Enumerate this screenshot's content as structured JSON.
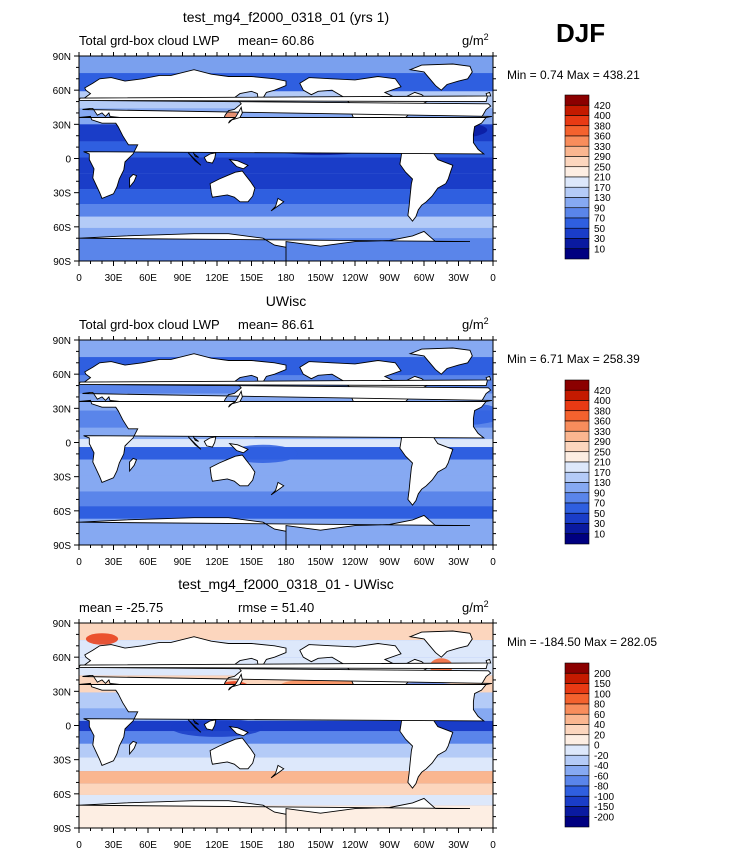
{
  "season_label": "DJF",
  "colors": {
    "ocean_base": "#6f96ec",
    "land": "#ffffff",
    "outline": "#000000"
  },
  "chart_data": [
    {
      "type": "heatmap",
      "title": "test_mg4_f2000_0318_01 (yrs 1)",
      "left_label": "Total grd-box cloud LWP",
      "stat_text": "mean=  60.86",
      "units_base": "g/m",
      "units_exp": "2",
      "minmax_text": "Min =    0.74  Max =  438.21",
      "ylim": [
        -90,
        90
      ],
      "lat_ticks": [
        "90N",
        "60N",
        "30N",
        "0",
        "30S",
        "60S",
        "90S"
      ],
      "lon_ticks": [
        "0",
        "30E",
        "60E",
        "90E",
        "120E",
        "150E",
        "180",
        "150W",
        "120W",
        "90W",
        "60W",
        "30W",
        "0"
      ],
      "colorbar": {
        "levels": [
          "420",
          "400",
          "380",
          "360",
          "330",
          "290",
          "250",
          "210",
          "170",
          "130",
          "90",
          "70",
          "50",
          "30",
          "10"
        ],
        "colors": [
          "#8b0000",
          "#c41a00",
          "#e83a14",
          "#f4622e",
          "#f88d5c",
          "#fab690",
          "#fcd6be",
          "#fdeee3",
          "#dde8fb",
          "#b4cbf7",
          "#86a9f2",
          "#5a85ea",
          "#2f5fe0",
          "#1a3dc8",
          "#0a1aa0",
          "#000080"
        ]
      },
      "bands": [
        {
          "lat": 82,
          "color": "#7aa0ee"
        },
        {
          "lat": 68,
          "color": "#2f5fe0"
        },
        {
          "lat": 50,
          "color": "#b4cbf7"
        },
        {
          "lat": 38,
          "color": "#86a9f2"
        },
        {
          "lat": 22,
          "color": "#1a3dc8"
        },
        {
          "lat": 8,
          "color": "#2f5fe0"
        },
        {
          "lat": -6,
          "color": "#1a3dc8"
        },
        {
          "lat": -20,
          "color": "#1a3dc8"
        },
        {
          "lat": -34,
          "color": "#2f5fe0"
        },
        {
          "lat": -46,
          "color": "#5a85ea"
        },
        {
          "lat": -56,
          "color": "#b4cbf7"
        },
        {
          "lat": -66,
          "color": "#86a9f2"
        },
        {
          "lat": -74,
          "color": "#5a85ea"
        }
      ],
      "blobs": [
        {
          "lon": 133,
          "lat": 36,
          "rx": 6,
          "ry": 5,
          "color": "#f88d5c"
        },
        {
          "lon": -45,
          "lat": 25,
          "rx": 40,
          "ry": 8,
          "color": "#0a1aa0"
        },
        {
          "lon": -150,
          "lat": 8,
          "rx": 40,
          "ry": 5,
          "color": "#0a1aa0"
        }
      ]
    },
    {
      "type": "heatmap",
      "title": "UWisc",
      "left_label": "Total grd-box cloud LWP",
      "stat_text": "mean=  86.61",
      "units_base": "g/m",
      "units_exp": "2",
      "minmax_text": "Min =    6.71  Max =  258.39",
      "ylim": [
        -90,
        90
      ],
      "lat_ticks": [
        "90N",
        "60N",
        "30N",
        "0",
        "30S",
        "60S",
        "90S"
      ],
      "lon_ticks": [
        "0",
        "30E",
        "60E",
        "90E",
        "120E",
        "150E",
        "180",
        "150W",
        "120W",
        "90W",
        "60W",
        "30W",
        "0"
      ],
      "colorbar": {
        "levels": [
          "420",
          "400",
          "380",
          "360",
          "330",
          "290",
          "250",
          "210",
          "170",
          "130",
          "90",
          "70",
          "50",
          "30",
          "10"
        ],
        "colors": [
          "#8b0000",
          "#c41a00",
          "#e83a14",
          "#f4622e",
          "#f88d5c",
          "#fab690",
          "#fcd6be",
          "#fdeee3",
          "#dde8fb",
          "#b4cbf7",
          "#86a9f2",
          "#5a85ea",
          "#2f5fe0",
          "#1a3dc8",
          "#0a1aa0",
          "#000080"
        ]
      },
      "bands": [
        {
          "lat": 82,
          "color": "#86a9f2"
        },
        {
          "lat": 68,
          "color": "#2f5fe0"
        },
        {
          "lat": 50,
          "color": "#5a85ea"
        },
        {
          "lat": 36,
          "color": "#86a9f2"
        },
        {
          "lat": 20,
          "color": "#5a85ea"
        },
        {
          "lat": 6,
          "color": "#86a9f2"
        },
        {
          "lat": 0,
          "color": "#dde8fb"
        },
        {
          "lat": -8,
          "color": "#2f5fe0"
        },
        {
          "lat": -22,
          "color": "#86a9f2"
        },
        {
          "lat": -36,
          "color": "#86a9f2"
        },
        {
          "lat": -50,
          "color": "#5a85ea"
        },
        {
          "lat": -62,
          "color": "#2f5fe0"
        },
        {
          "lat": -72,
          "color": "#86a9f2"
        }
      ],
      "blobs": [
        {
          "lon": -30,
          "lat": 25,
          "rx": 40,
          "ry": 10,
          "color": "#2f5fe0"
        },
        {
          "lon": 160,
          "lat": -10,
          "rx": 30,
          "ry": 8,
          "color": "#2f5fe0"
        }
      ]
    },
    {
      "type": "heatmap",
      "title": "test_mg4_f2000_0318_01 - UWisc",
      "left_label": "mean = -25.75",
      "stat_text": "rmse =  51.40",
      "units_base": "g/m",
      "units_exp": "2",
      "minmax_text": "Min = -184.50  Max = 282.05",
      "ylim": [
        -90,
        90
      ],
      "lat_ticks": [
        "90N",
        "60N",
        "30N",
        "0",
        "30S",
        "60S",
        "90S"
      ],
      "lon_ticks": [
        "0",
        "30E",
        "60E",
        "90E",
        "120E",
        "150E",
        "180",
        "150W",
        "120W",
        "90W",
        "60W",
        "30W",
        "0"
      ],
      "colorbar": {
        "levels": [
          "200",
          "150",
          "100",
          "80",
          "60",
          "40",
          "20",
          "0",
          "-20",
          "-40",
          "-60",
          "-80",
          "-100",
          "-150",
          "-200"
        ],
        "colors": [
          "#8b0000",
          "#c41a00",
          "#e83a14",
          "#f4622e",
          "#f88d5c",
          "#fab690",
          "#fcd6be",
          "#fdeee3",
          "#dde8fb",
          "#b4cbf7",
          "#86a9f2",
          "#5a85ea",
          "#2f5fe0",
          "#1a3dc8",
          "#0a1aa0",
          "#000080"
        ]
      },
      "bands": [
        {
          "lat": 82,
          "color": "#fcd6be"
        },
        {
          "lat": 68,
          "color": "#dde8fb"
        },
        {
          "lat": 52,
          "color": "#dde8fb"
        },
        {
          "lat": 36,
          "color": "#fcd6be"
        },
        {
          "lat": 22,
          "color": "#b4cbf7"
        },
        {
          "lat": 8,
          "color": "#86a9f2"
        },
        {
          "lat": 0,
          "color": "#1a3dc8"
        },
        {
          "lat": -10,
          "color": "#5a85ea"
        },
        {
          "lat": -22,
          "color": "#b4cbf7"
        },
        {
          "lat": -34,
          "color": "#dde8fb"
        },
        {
          "lat": -46,
          "color": "#fab690"
        },
        {
          "lat": -56,
          "color": "#fcd6be"
        },
        {
          "lat": -66,
          "color": "#dde8fb"
        },
        {
          "lat": -74,
          "color": "#fdeee3"
        }
      ],
      "blobs": [
        {
          "lon": 20,
          "lat": 76,
          "rx": 14,
          "ry": 5,
          "color": "#e83a14"
        },
        {
          "lon": 135,
          "lat": 30,
          "rx": 16,
          "ry": 9,
          "color": "#e83a14"
        },
        {
          "lon": -45,
          "lat": 52,
          "rx": 10,
          "ry": 7,
          "color": "#f4622e"
        },
        {
          "lon": -150,
          "lat": 35,
          "rx": 35,
          "ry": 6,
          "color": "#f88d5c"
        },
        {
          "lon": 120,
          "lat": -2,
          "rx": 40,
          "ry": 8,
          "color": "#1a3dc8"
        },
        {
          "lon": -60,
          "lat": 32,
          "rx": 35,
          "ry": 6,
          "color": "#5a85ea"
        }
      ]
    }
  ]
}
